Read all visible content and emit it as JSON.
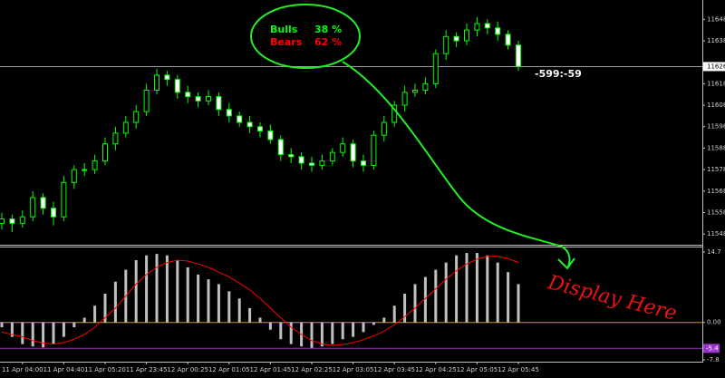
{
  "chart_data": [
    {
      "type": "candlestick",
      "categories": [
        null,
        null,
        "11 Apr 04:00",
        null,
        null,
        null,
        "11 Apr 04:40",
        null,
        null,
        null,
        "11 Apr 05:20",
        null,
        null,
        null,
        "11 Apr 23:45",
        null,
        null,
        null,
        "12 Apr 00:25",
        null,
        null,
        null,
        "12 Apr 01:05",
        null,
        null,
        null,
        "12 Apr 01:45",
        null,
        null,
        null,
        "12 Apr 02:25",
        null,
        null,
        null,
        "12 Apr 03:05",
        null,
        null,
        null,
        "12 Apr 03:45",
        null,
        null,
        null,
        "12 Apr 04:25",
        null,
        null,
        null,
        "12 Apr 05:05",
        null,
        null,
        null,
        "12 Apr 05:45"
      ],
      "open": [
        11553,
        11555,
        11553,
        11556,
        11565,
        11560,
        11556,
        11572,
        11578,
        11578,
        11582,
        11590,
        11595,
        11600,
        11605,
        11615,
        11622,
        11620,
        11614,
        11612,
        11610,
        11612,
        11606,
        11603,
        11600,
        11598,
        11596,
        11592,
        11585,
        11584,
        11581,
        11580,
        11582,
        11586,
        11590,
        11582,
        11580,
        11594,
        11600,
        11608,
        11614,
        11615,
        11618,
        11632,
        11640,
        11638,
        11643,
        11646,
        11644,
        11641,
        11636
      ],
      "high": [
        11558,
        11557,
        11559,
        11568,
        11567,
        11563,
        11575,
        11580,
        11581,
        11585,
        11593,
        11598,
        11603,
        11608,
        11618,
        11625,
        11624,
        11622,
        11617,
        11614,
        11615,
        11614,
        11609,
        11605,
        11603,
        11600,
        11599,
        11594,
        11588,
        11586,
        11584,
        11585,
        11588,
        11593,
        11592,
        11585,
        11596,
        11603,
        11610,
        11617,
        11618,
        11621,
        11634,
        11643,
        11642,
        11646,
        11649,
        11648,
        11647,
        11643,
        11638
      ],
      "low": [
        11550,
        11549,
        11551,
        11554,
        11557,
        11552,
        11554,
        11569,
        11575,
        11576,
        11580,
        11587,
        11593,
        11597,
        11603,
        11613,
        11617,
        11611,
        11609,
        11607,
        11608,
        11603,
        11600,
        11598,
        11595,
        11593,
        11590,
        11582,
        11581,
        11578,
        11577,
        11578,
        11580,
        11584,
        11579,
        11577,
        11578,
        11591,
        11598,
        11605,
        11612,
        11613,
        11616,
        11629,
        11635,
        11636,
        11640,
        11641,
        11638,
        11634,
        11624
      ],
      "close": [
        11555,
        11553,
        11556,
        11565,
        11560,
        11556,
        11572,
        11578,
        11578,
        11582,
        11590,
        11595,
        11600,
        11605,
        11615,
        11622,
        11620,
        11614,
        11612,
        11610,
        11612,
        11606,
        11603,
        11600,
        11598,
        11596,
        11592,
        11585,
        11584,
        11581,
        11580,
        11582,
        11586,
        11590,
        11582,
        11580,
        11594,
        11600,
        11608,
        11614,
        11615,
        11618,
        11632,
        11640,
        11638,
        11643,
        11646,
        11644,
        11641,
        11636,
        11626
      ],
      "up_color": "#00ff00",
      "down_color": "#ffffff",
      "ylim": [
        11543,
        11657
      ],
      "yticks": [
        11548,
        11558,
        11568,
        11578,
        11588,
        11598,
        11608,
        11618,
        11638,
        11648
      ],
      "current_price": 11626,
      "sentiment": [
        {
          "name": "Bulls",
          "value": 38,
          "value_label": "38 %",
          "color": "#00ff00"
        },
        {
          "name": "Bears",
          "value": 62,
          "value_label": "62 %",
          "color": "#ff0000"
        }
      ],
      "annotation": "-599:-59"
    },
    {
      "type": "macd",
      "histogram": {
        "color": "#c0c0c0",
        "values": [
          -1,
          -3,
          -4.5,
          -5,
          -5.2,
          -4.5,
          -3,
          -1,
          1,
          3.5,
          6,
          8.5,
          11,
          13,
          14,
          14.3,
          14,
          13,
          11.5,
          10,
          9,
          8,
          6.5,
          5,
          3,
          1,
          -1.5,
          -3.5,
          -4.5,
          -5,
          -5.3,
          -5,
          -4.5,
          -3.5,
          -3,
          -2,
          -0.5,
          1,
          3.5,
          6,
          8,
          9.5,
          11,
          12.5,
          14,
          14.5,
          14.5,
          14,
          12.5,
          10.5,
          8
        ]
      },
      "signal": {
        "color": "#ff0000",
        "values": [
          -2,
          -2.5,
          -3,
          -3.8,
          -4.3,
          -4.5,
          -4.2,
          -3.5,
          -2.5,
          -1,
          1,
          3,
          5.5,
          8,
          10,
          11.5,
          12.5,
          13,
          12.8,
          12.2,
          11.5,
          10.5,
          9.5,
          8.2,
          6.8,
          5,
          3,
          1,
          -1,
          -2.5,
          -3.8,
          -4.5,
          -4.8,
          -4.6,
          -4.2,
          -3.6,
          -2.8,
          -1.8,
          -0.5,
          1.2,
          3,
          5,
          7,
          9,
          10.8,
          12.2,
          13.2,
          13.8,
          13.8,
          13.3,
          12.5
        ]
      },
      "ylim": [
        -7.8,
        14.7
      ],
      "yticks": [
        14.7,
        {
          "value": 0,
          "label": "0.00"
        },
        -7.8
      ],
      "zero_color": "#c8a000",
      "level": -5.4,
      "level_color": "#9933cc"
    }
  ],
  "note": "Display Here"
}
